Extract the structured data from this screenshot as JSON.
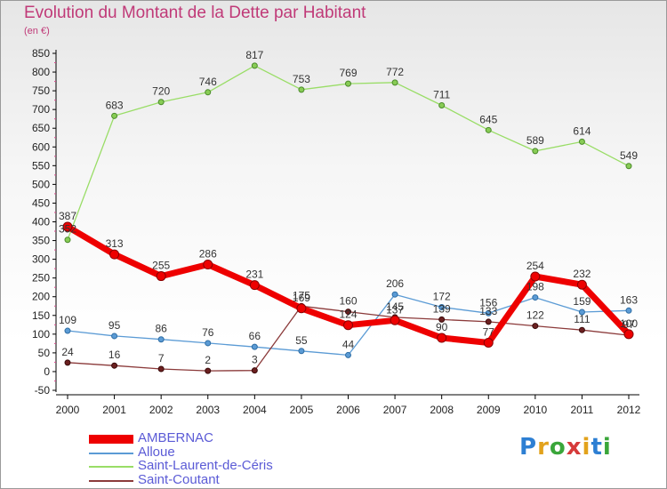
{
  "header": {
    "title": "Evolution du Montant de la Dette par Habitant",
    "unit": "(en €)"
  },
  "logo": {
    "text": "Proxiti",
    "colors": [
      "#2d7fd3",
      "#e2a21c",
      "#3aa63a",
      "#d63a3a",
      "#e2a21c",
      "#2d7fd3",
      "#3aa63a"
    ]
  },
  "chart_data": {
    "type": "line",
    "title": "Evolution du Montant de la Dette par Habitant",
    "subtitle": "(en €)",
    "xlabel": "",
    "ylabel": "",
    "x": [
      "2000",
      "2001",
      "2002",
      "2003",
      "2004",
      "2005",
      "2006",
      "2007",
      "2008",
      "2009",
      "2010",
      "2011",
      "2012"
    ],
    "ylim": [
      -50,
      850
    ],
    "yticks": [
      "-50",
      "0",
      "50",
      "100",
      "150",
      "200",
      "250",
      "300",
      "350",
      "400",
      "450",
      "500",
      "550",
      "600",
      "650",
      "700",
      "750",
      "800",
      "850"
    ],
    "grid": false,
    "legend_position": "bottom-left",
    "series": [
      {
        "name": "AMBERNAC",
        "color": "#ee0000",
        "values": [
          387,
          313,
          255,
          286,
          231,
          169,
          124,
          137,
          90,
          77,
          254,
          232,
          100
        ],
        "labels": [
          "387",
          "313",
          "255",
          "286",
          "231",
          "169",
          "124",
          "137",
          "90",
          "77",
          "254",
          "232",
          "100"
        ]
      },
      {
        "name": "Alloue",
        "color": "#5b9bd5",
        "values": [
          109,
          95,
          86,
          76,
          66,
          55,
          44,
          206,
          172,
          156,
          198,
          159,
          163
        ],
        "labels": [
          "109",
          "95",
          "86",
          "76",
          "66",
          "55",
          "44",
          "206",
          "172",
          "156",
          "198",
          "159",
          "163"
        ]
      },
      {
        "name": "Saint-Laurent-de-Céris",
        "color": "#99dd66",
        "values": [
          352,
          683,
          720,
          746,
          817,
          753,
          769,
          772,
          711,
          645,
          589,
          614,
          549
        ],
        "labels": [
          "352",
          "683",
          "720",
          "746",
          "817",
          "753",
          "769",
          "772",
          "711",
          "645",
          "589",
          "614",
          "549"
        ]
      },
      {
        "name": "Saint-Coutant",
        "color": "#8b3a3a",
        "values": [
          24,
          16,
          7,
          2,
          3,
          175,
          160,
          145,
          139,
          133,
          122,
          111,
          97
        ],
        "labels": [
          "24",
          "16",
          "7",
          "2",
          "3",
          "175",
          "160",
          "145",
          "139",
          "133",
          "122",
          "111",
          "97"
        ]
      }
    ]
  }
}
